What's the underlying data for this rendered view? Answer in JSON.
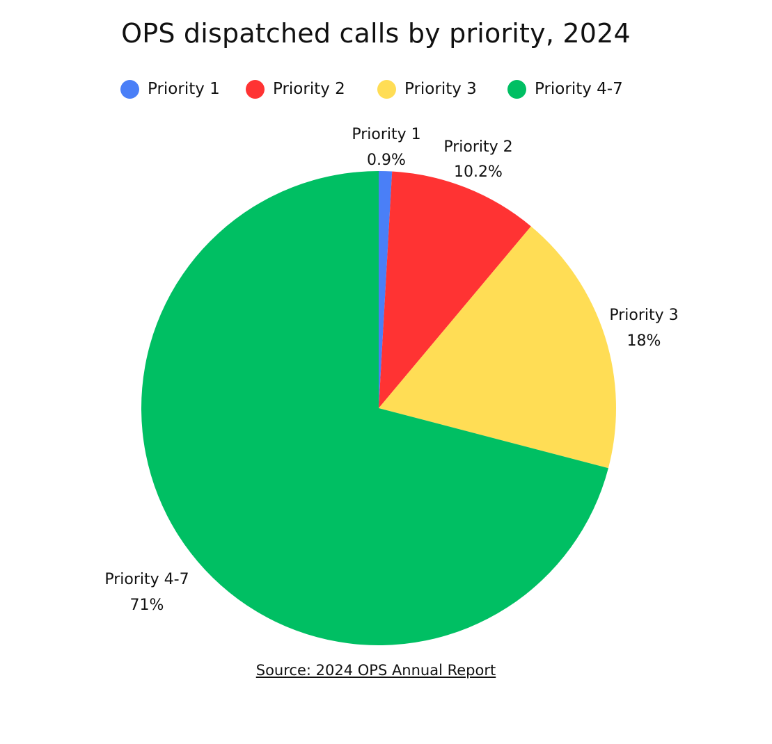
{
  "chart_data": {
    "type": "pie",
    "title": "OPS dispatched calls by priority, 2024",
    "categories": [
      "Priority 1",
      "Priority 2",
      "Priority 3",
      "Priority 4-7"
    ],
    "values": [
      0.9,
      10.2,
      18,
      71
    ],
    "value_labels": [
      "0.9%",
      "10.2%",
      "18%",
      "71%"
    ],
    "colors": [
      "#4a7ff7",
      "#ff3333",
      "#ffdd55",
      "#00bf63"
    ],
    "legend_position": "top",
    "start_angle": "12 o'clock",
    "direction": "clockwise"
  },
  "source": {
    "label": "Source: 2024 OPS Annual Report"
  }
}
